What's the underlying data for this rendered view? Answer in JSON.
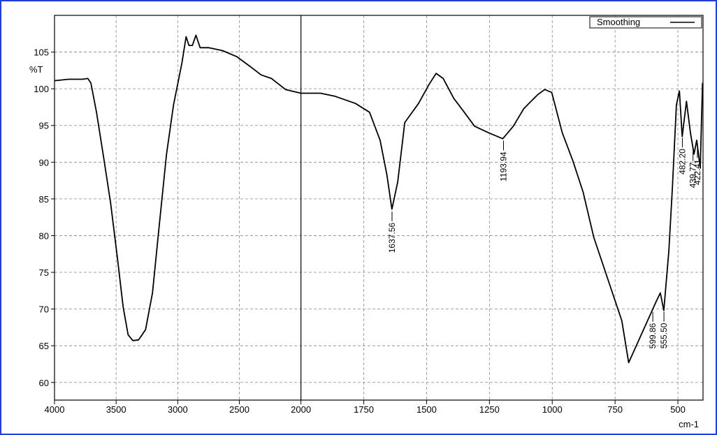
{
  "chart_data": {
    "type": "line",
    "xlabel": "cm-1",
    "ylabel": "%T",
    "xlim": [
      4000,
      400
    ],
    "x_scale_break": 2000,
    "ylim": [
      57.6,
      110
    ],
    "xticks": [
      4000,
      3500,
      3000,
      2500,
      2000,
      1750,
      1500,
      1250,
      1000,
      750,
      500
    ],
    "yticks": [
      60,
      65,
      70,
      75,
      80,
      85,
      90,
      95,
      100,
      105
    ],
    "grid": true,
    "legend": "upper right",
    "series": [
      {
        "name": "Smoothing",
        "color": "#000000",
        "x": [
          4000,
          3886,
          3773,
          3730,
          3705,
          3659,
          3602,
          3545,
          3489,
          3443,
          3403,
          3364,
          3318,
          3261,
          3205,
          3148,
          3091,
          3034,
          2966,
          2932,
          2909,
          2881,
          2852,
          2818,
          2750,
          2636,
          2523,
          2409,
          2324,
          2239,
          2125,
          2000,
          1922,
          1866,
          1783,
          1727,
          1685,
          1658,
          1638,
          1615,
          1587,
          1532,
          1490,
          1462,
          1434,
          1392,
          1350,
          1309,
          1253,
          1197,
          1155,
          1113,
          1058,
          1030,
          1002,
          960,
          918,
          877,
          835,
          779,
          723,
          696,
          584,
          570,
          556,
          536,
          522,
          506,
          494,
          483,
          466,
          450,
          436,
          425,
          411,
          402
        ],
        "values": [
          101.1,
          101.3,
          101.3,
          101.4,
          100.8,
          96.8,
          90.7,
          84.5,
          76.9,
          70.3,
          66.5,
          65.7,
          65.8,
          67.2,
          72.2,
          81.7,
          91.1,
          97.8,
          103.5,
          107.1,
          105.9,
          105.9,
          107.3,
          105.6,
          105.6,
          105.2,
          104.4,
          103.0,
          101.9,
          101.4,
          99.9,
          99.4,
          99.4,
          99.0,
          98.0,
          96.8,
          93.0,
          88.3,
          83.6,
          87.3,
          95.4,
          98.0,
          100.6,
          102.1,
          101.4,
          98.7,
          96.8,
          94.9,
          94.0,
          93.2,
          94.9,
          97.3,
          99.2,
          99.9,
          99.5,
          94.0,
          90.2,
          85.9,
          79.8,
          74.1,
          68.4,
          62.7,
          71.2,
          72.2,
          69.8,
          77.9,
          86.4,
          97.8,
          99.7,
          93.5,
          98.3,
          94.0,
          91.1,
          93.0,
          89.2,
          100.8
        ]
      }
    ],
    "annotations": [
      {
        "value": 1637.56,
        "label": "1637.56"
      },
      {
        "value": 1193.94,
        "label": "1193.94"
      },
      {
        "value": 599.86,
        "label": "599.86"
      },
      {
        "value": 555.5,
        "label": "555.50"
      },
      {
        "value": 482.2,
        "label": "482.20"
      },
      {
        "value": 439.77,
        "label": "439.77"
      },
      {
        "value": 422.41,
        "label": "422.41"
      }
    ]
  }
}
